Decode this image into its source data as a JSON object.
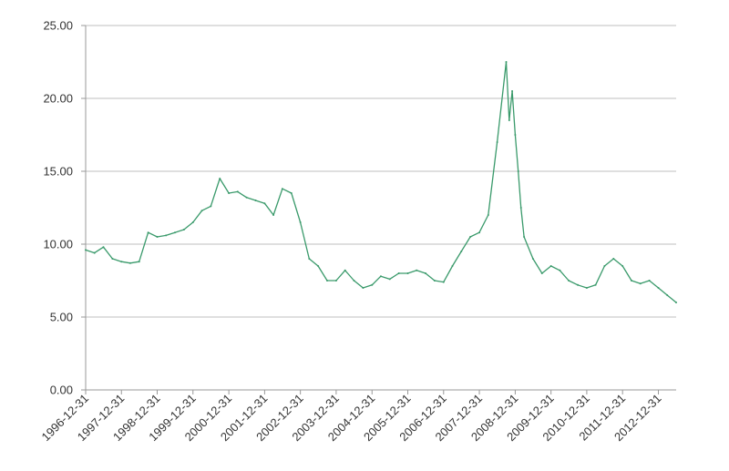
{
  "chart_data": {
    "type": "line",
    "title": "",
    "xlabel": "",
    "ylabel": "",
    "ylim": [
      0,
      25
    ],
    "xlim": [
      "1996-12-31",
      "2013-06-30"
    ],
    "grid": "horizontal",
    "legend": "none",
    "y_ticks": [
      "0.00",
      "5.00",
      "10.00",
      "15.00",
      "20.00",
      "25.00"
    ],
    "y_tick_values": [
      0,
      5,
      10,
      15,
      20,
      25
    ],
    "x_ticks": [
      "1996-12-31",
      "1997-12-31",
      "1998-12-31",
      "1999-12-31",
      "2000-12-31",
      "2001-12-31",
      "2002-12-31",
      "2003-12-31",
      "2004-12-31",
      "2005-12-31",
      "2006-12-31",
      "2007-12-31",
      "2008-12-31",
      "2009-12-31",
      "2010-12-31",
      "2011-12-31",
      "2012-12-31"
    ],
    "colors": {
      "line": "#3a9a6b",
      "grid": "#bfbfbf",
      "axis": "#999999"
    },
    "series": [
      {
        "x": [
          "1996-12-31",
          "1997-03-31",
          "1997-06-30",
          "1997-09-30",
          "1997-12-31",
          "1998-03-31",
          "1998-06-30",
          "1998-09-30",
          "1998-12-31",
          "1999-03-31",
          "1999-06-30",
          "1999-09-30",
          "1999-12-31",
          "2000-03-31",
          "2000-06-30",
          "2000-09-30",
          "2000-12-31",
          "2001-03-31",
          "2001-06-30",
          "2001-09-30",
          "2001-12-31",
          "2002-03-31",
          "2002-06-30",
          "2002-09-30",
          "2002-12-31",
          "2003-03-31",
          "2003-06-30",
          "2003-09-30",
          "2003-12-31",
          "2004-03-31",
          "2004-06-30",
          "2004-09-30",
          "2004-12-31",
          "2005-03-31",
          "2005-06-30",
          "2005-09-30",
          "2005-12-31",
          "2006-03-31",
          "2006-06-30",
          "2006-09-30",
          "2006-12-31",
          "2007-03-31",
          "2007-06-30",
          "2007-09-30",
          "2007-12-31",
          "2008-03-31",
          "2008-06-30",
          "2008-09-30",
          "2008-10-31",
          "2008-11-30",
          "2008-12-31",
          "2009-01-31",
          "2009-02-28",
          "2009-03-31",
          "2009-06-30",
          "2009-09-30",
          "2009-12-31",
          "2010-03-31",
          "2010-06-30",
          "2010-09-30",
          "2010-12-31",
          "2011-03-31",
          "2011-06-30",
          "2011-09-30",
          "2011-12-31",
          "2012-03-31",
          "2012-06-30",
          "2012-09-30",
          "2012-12-31",
          "2013-03-31",
          "2013-06-30"
        ],
        "values": [
          9.6,
          9.4,
          9.8,
          9.0,
          8.8,
          8.7,
          8.8,
          10.8,
          10.5,
          10.6,
          10.8,
          11.0,
          11.5,
          12.3,
          12.6,
          14.5,
          13.5,
          13.6,
          13.2,
          13.0,
          12.8,
          12.0,
          13.8,
          13.5,
          11.5,
          9.0,
          8.5,
          7.5,
          7.5,
          8.2,
          7.5,
          7.0,
          7.2,
          7.8,
          7.6,
          8.0,
          8.0,
          8.2,
          8.0,
          7.5,
          7.4,
          8.5,
          9.5,
          10.5,
          10.8,
          12.0,
          17.0,
          22.5,
          18.5,
          20.5,
          17.5,
          15.0,
          12.5,
          10.5,
          9.0,
          8.0,
          8.5,
          8.2,
          7.5,
          7.2,
          7.0,
          7.2,
          8.5,
          9.0,
          8.5,
          7.5,
          7.3,
          7.5,
          7.0,
          6.5,
          6.0
        ]
      }
    ]
  }
}
